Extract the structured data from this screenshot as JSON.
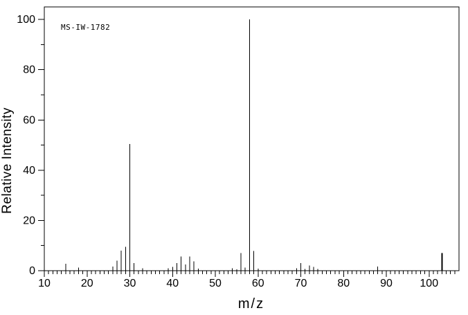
{
  "page": {
    "background_color": "#ffffff",
    "foreground_color": "#000000"
  },
  "chart_data": {
    "type": "bar",
    "subtype": "mass-spectrum",
    "annotation": "MS-IW-1782",
    "xlabel": "m/z",
    "ylabel": "Relative Intensity",
    "xlim": [
      10,
      107
    ],
    "ylim": [
      0,
      105
    ],
    "x_major_ticks": [
      10,
      20,
      30,
      40,
      50,
      60,
      70,
      80,
      90,
      100
    ],
    "x_minor_tick_step": 1,
    "x_minor_tick_max": 106,
    "y_major_ticks": [
      0,
      20,
      40,
      60,
      80,
      100
    ],
    "y_minor_tick_step": 10,
    "grid": false,
    "legend": false,
    "line_color": "#000000",
    "peaks": [
      {
        "mz": 15,
        "intensity": 2.8
      },
      {
        "mz": 18,
        "intensity": 1.2
      },
      {
        "mz": 26,
        "intensity": 1.7
      },
      {
        "mz": 27,
        "intensity": 4.0
      },
      {
        "mz": 28,
        "intensity": 8.0
      },
      {
        "mz": 29,
        "intensity": 9.5
      },
      {
        "mz": 30,
        "intensity": 50.5
      },
      {
        "mz": 31,
        "intensity": 3.0
      },
      {
        "mz": 33,
        "intensity": 1.0
      },
      {
        "mz": 39,
        "intensity": 1.0
      },
      {
        "mz": 40,
        "intensity": 1.5
      },
      {
        "mz": 41,
        "intensity": 3.0
      },
      {
        "mz": 42,
        "intensity": 5.7
      },
      {
        "mz": 43,
        "intensity": 2.5
      },
      {
        "mz": 44,
        "intensity": 5.7
      },
      {
        "mz": 45,
        "intensity": 3.7
      },
      {
        "mz": 46,
        "intensity": 0.8
      },
      {
        "mz": 54,
        "intensity": 1.0
      },
      {
        "mz": 55,
        "intensity": 0.6
      },
      {
        "mz": 56,
        "intensity": 7.0
      },
      {
        "mz": 57,
        "intensity": 1.3
      },
      {
        "mz": 58,
        "intensity": 100.0
      },
      {
        "mz": 59,
        "intensity": 7.8
      },
      {
        "mz": 60,
        "intensity": 0.8
      },
      {
        "mz": 69,
        "intensity": 1.0
      },
      {
        "mz": 70,
        "intensity": 3.0
      },
      {
        "mz": 71,
        "intensity": 0.7
      },
      {
        "mz": 72,
        "intensity": 2.0
      },
      {
        "mz": 73,
        "intensity": 1.5
      },
      {
        "mz": 74,
        "intensity": 0.7
      },
      {
        "mz": 88,
        "intensity": 1.7
      },
      {
        "mz": 103,
        "intensity": 7.0
      }
    ],
    "bold_peaks": [
      103
    ]
  }
}
